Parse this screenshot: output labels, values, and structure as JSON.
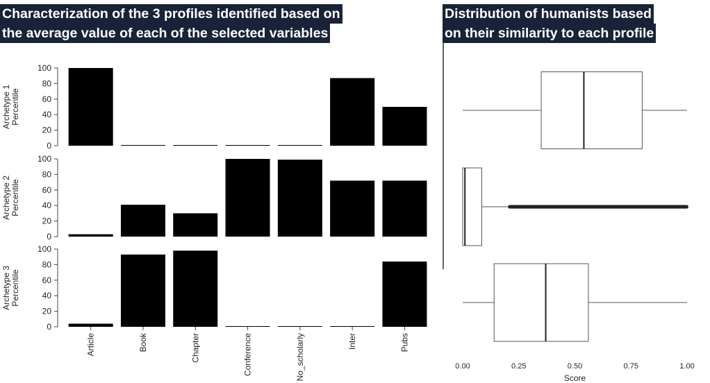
{
  "left_title": {
    "line1": "Characterization of the 3 profiles identified based on",
    "line2": "the average value of each of the selected variables"
  },
  "right_title": {
    "line1": "Distribution of humanists based",
    "line2": "on their similarity to each profile"
  },
  "chart_data": [
    {
      "type": "bar",
      "categories": [
        "Article",
        "Book",
        "Chapter",
        "Conference",
        "No_scholarly",
        "Inter",
        "Pubs"
      ],
      "series": [
        {
          "name": "Archetype 1",
          "values": [
            100,
            0,
            0,
            0,
            0,
            87,
            50
          ]
        },
        {
          "name": "Archetype 2",
          "values": [
            3,
            41,
            30,
            100,
            99,
            72,
            72
          ]
        },
        {
          "name": "Archetype 3",
          "values": [
            4,
            93,
            98,
            0,
            0,
            0,
            84
          ]
        }
      ],
      "ylabels": [
        "Archetype 1\nPercentile",
        "Archetype 2\nPercentile",
        "Archetype 3\nPercentile"
      ],
      "ylim": [
        0,
        100
      ],
      "yticks": [
        0,
        20,
        40,
        60,
        80,
        100
      ],
      "grid": false,
      "bar_color": "#000000"
    },
    {
      "type": "boxplot",
      "xlabel": "Score",
      "xlim": [
        0,
        1
      ],
      "xticks": [
        "0.00",
        "0.25",
        "0.50",
        "0.75",
        "1.00"
      ],
      "boxes": [
        {
          "whisker_low": 0.0,
          "q1": 0.35,
          "median": 0.54,
          "q3": 0.8,
          "whisker_high": 1.0,
          "outliers_from": null
        },
        {
          "whisker_low": 0.0,
          "q1": 0.0,
          "median": 0.01,
          "q3": 0.085,
          "whisker_high": 0.21,
          "outliers_from": 0.21
        },
        {
          "whisker_low": 0.0,
          "q1": 0.14,
          "median": 0.37,
          "q3": 0.56,
          "whisker_high": 1.0,
          "outliers_from": null
        }
      ],
      "grid": false
    }
  ]
}
